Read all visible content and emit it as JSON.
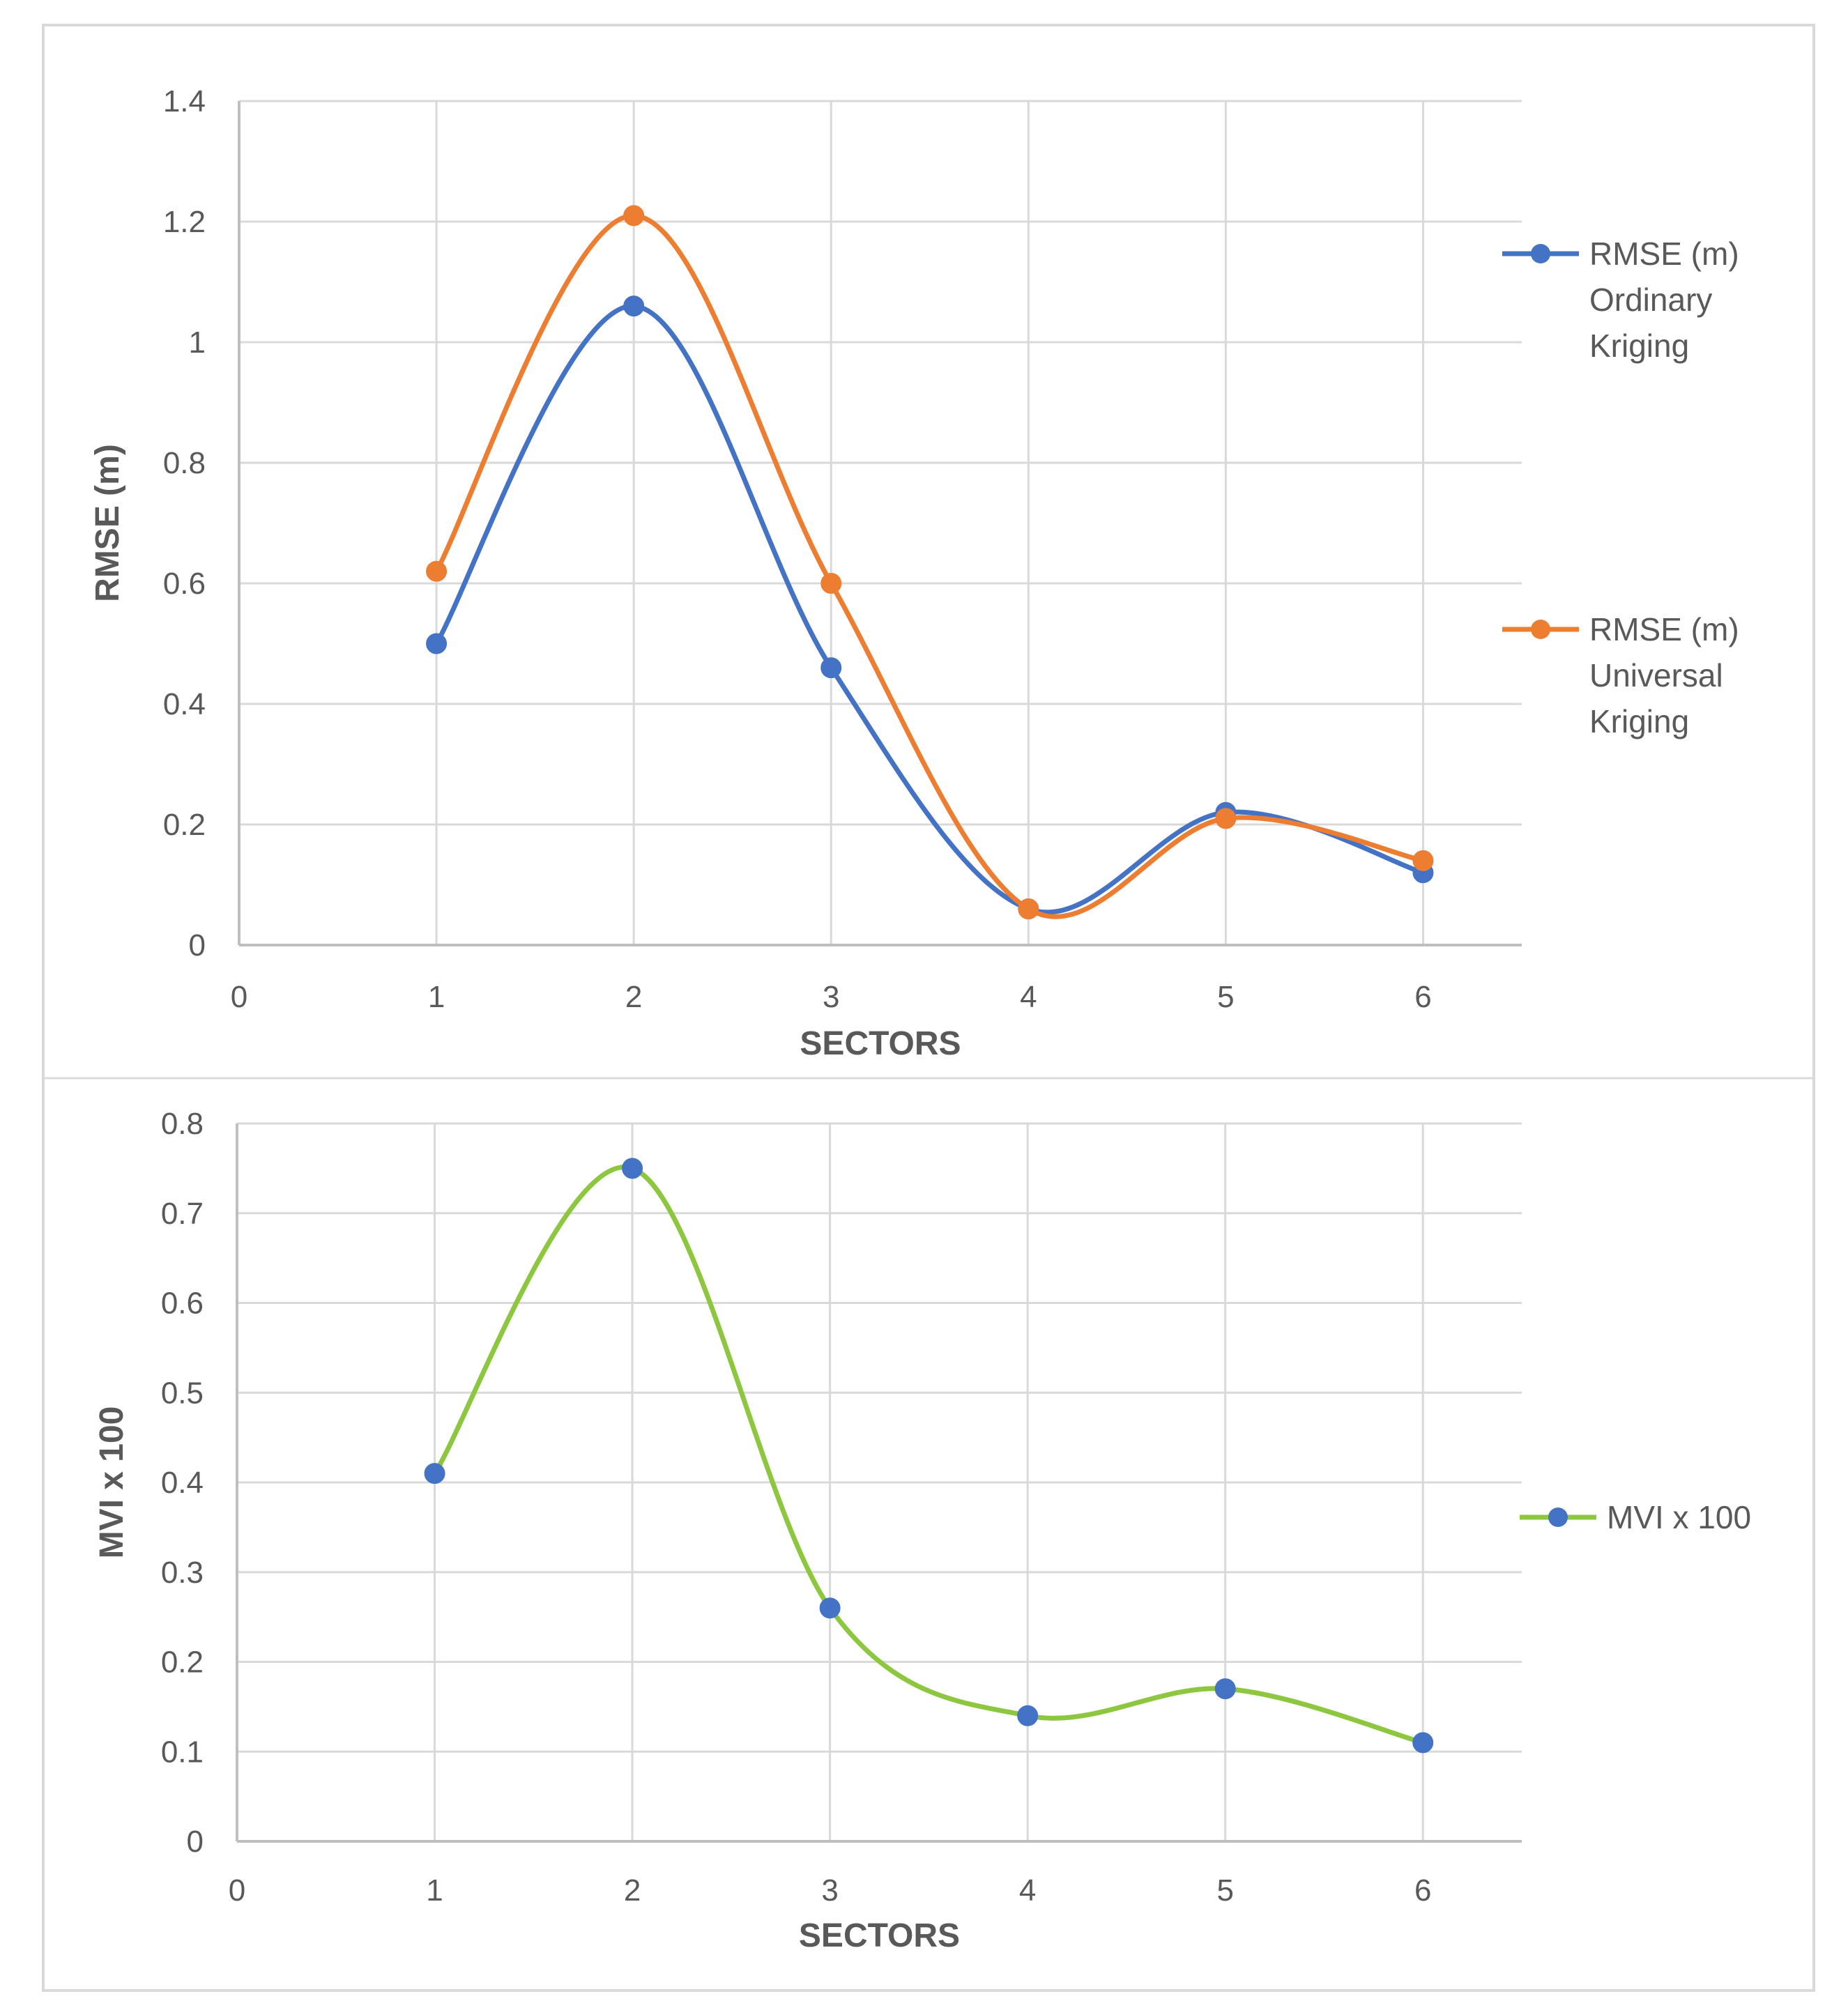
{
  "chart_data": [
    {
      "type": "line",
      "smooth": true,
      "xlabel": "SECTORS",
      "ylabel": "RMSE (m)",
      "xlim": [
        0,
        6.5
      ],
      "ylim": [
        0,
        1.4
      ],
      "grid": true,
      "legend": "right",
      "x_tick_labels": [
        "0",
        "1",
        "2",
        "3",
        "4",
        "5",
        "6"
      ],
      "y_tick_labels": [
        "0",
        "0.2",
        "0.4",
        "0.6",
        "0.8",
        "1",
        "1.2",
        "1.4"
      ],
      "x_ticks": [
        0,
        1,
        2,
        3,
        4,
        5,
        6
      ],
      "y_ticks": [
        0,
        0.2,
        0.4,
        0.6,
        0.8,
        1.0,
        1.2,
        1.4
      ],
      "x": [
        1,
        2,
        3,
        4,
        5,
        6
      ],
      "series": [
        {
          "name": "RMSE (m) Ordinary Kriging",
          "legend_lines": [
            "RMSE (m)",
            "Ordinary",
            "Kriging"
          ],
          "color": "#4472C4",
          "marker_color": "#4472C4",
          "values": [
            0.5,
            1.06,
            0.46,
            0.06,
            0.22,
            0.12
          ]
        },
        {
          "name": "RMSE (m) Universal Kriging",
          "legend_lines": [
            "RMSE (m)",
            "Universal",
            "Kriging"
          ],
          "color": "#ED7D31",
          "marker_color": "#ED7D31",
          "values": [
            0.62,
            1.21,
            0.6,
            0.06,
            0.21,
            0.14
          ]
        }
      ]
    },
    {
      "type": "line",
      "smooth": true,
      "xlabel": "SECTORS",
      "ylabel": "MVI x 100",
      "xlim": [
        0,
        6.5
      ],
      "ylim": [
        0,
        0.8
      ],
      "grid": true,
      "legend": "right",
      "x_tick_labels": [
        "0",
        "1",
        "2",
        "3",
        "4",
        "5",
        "6"
      ],
      "y_tick_labels": [
        "0",
        "0.1",
        "0.2",
        "0.3",
        "0.4",
        "0.5",
        "0.6",
        "0.7",
        "0.8"
      ],
      "x_ticks": [
        0,
        1,
        2,
        3,
        4,
        5,
        6
      ],
      "y_ticks": [
        0,
        0.1,
        0.2,
        0.3,
        0.4,
        0.5,
        0.6,
        0.7,
        0.8
      ],
      "x": [
        1,
        2,
        3,
        4,
        5,
        6
      ],
      "series": [
        {
          "name": "MVI x 100",
          "legend_lines": [
            "MVI x 100"
          ],
          "color": "#8DC63F",
          "marker_color": "#4472C4",
          "values": [
            0.41,
            0.75,
            0.26,
            0.14,
            0.17,
            0.11
          ]
        }
      ]
    }
  ],
  "colors": {
    "grid": "#D9D9D9",
    "axis": "#BFBFBF",
    "text": "#595959",
    "frame": "#D9D9D9"
  }
}
